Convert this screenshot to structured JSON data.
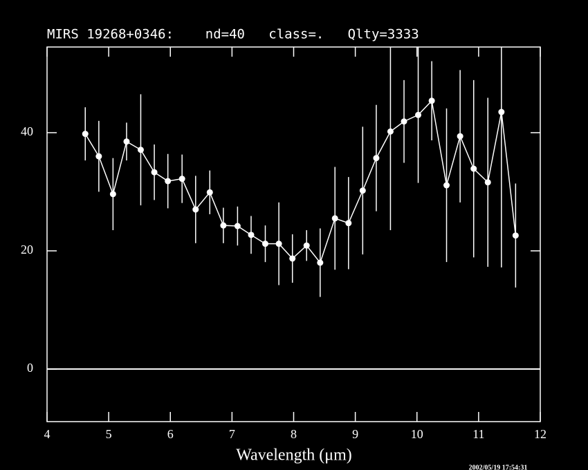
{
  "chart_data": {
    "type": "line",
    "title": "MIRS 19268+0346:    nd=40   class=.   Qlty=3333",
    "xlabel": "Wavelength (μm)",
    "timestamp": "2002/05/19 17:54:31",
    "x": [
      4.62,
      4.84,
      5.07,
      5.29,
      5.52,
      5.74,
      5.96,
      6.19,
      6.41,
      6.64,
      6.86,
      7.09,
      7.31,
      7.54,
      7.76,
      7.98,
      8.21,
      8.43,
      8.67,
      8.89,
      9.12,
      9.34,
      9.57,
      9.79,
      10.02,
      10.24,
      10.48,
      10.7,
      10.92,
      11.15,
      11.37,
      11.6
    ],
    "values": [
      39.8,
      36.0,
      29.6,
      38.5,
      37.1,
      33.3,
      31.8,
      32.2,
      27.0,
      29.9,
      24.3,
      24.2,
      22.7,
      21.2,
      21.2,
      18.7,
      20.9,
      18.0,
      25.5,
      24.7,
      30.2,
      35.7,
      40.2,
      41.9,
      43.0,
      45.4,
      31.1,
      39.4,
      33.9,
      31.6,
      43.5,
      22.6
    ],
    "errors": [
      4.5,
      6.0,
      6.1,
      3.2,
      9.4,
      4.7,
      4.6,
      4.1,
      5.7,
      3.7,
      3.0,
      3.3,
      3.2,
      3.1,
      7.0,
      4.1,
      2.6,
      5.8,
      8.7,
      7.8,
      10.8,
      9.0,
      16.7,
      7.0,
      11.5,
      6.7,
      13.0,
      11.2,
      15.0,
      14.3,
      26.3,
      8.8
    ],
    "color": "#ffffff",
    "background": "#000000",
    "xlim": [
      4,
      12
    ],
    "xticks": [
      4,
      5,
      6,
      7,
      8,
      9,
      10,
      11,
      12
    ],
    "ylim": [
      -8.9,
      54.5
    ],
    "yticks": [
      0,
      20,
      40
    ],
    "zero_line": true
  }
}
